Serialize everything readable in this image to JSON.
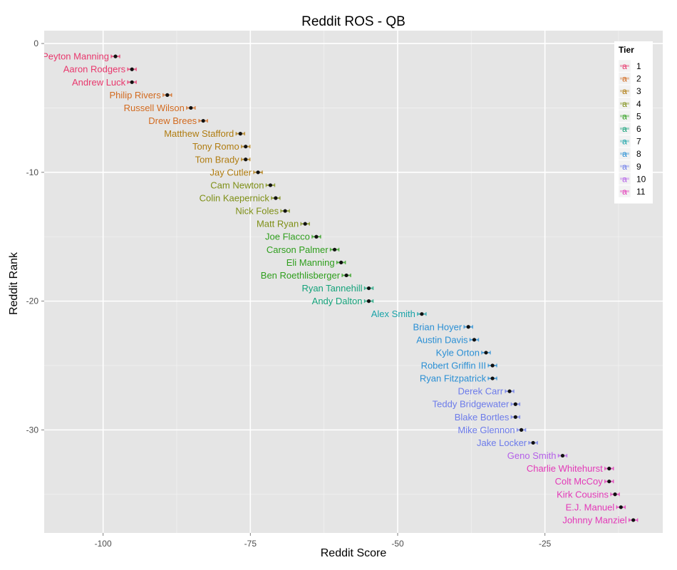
{
  "chart_data": {
    "type": "scatter",
    "title": "Reddit ROS -  QB",
    "xlabel": "Reddit Score",
    "ylabel": "Reddit Rank",
    "xlim": [
      -110,
      -5
    ],
    "ylim": [
      -38,
      1
    ],
    "x_ticks": [
      -100,
      -75,
      -50,
      -25
    ],
    "y_ticks": [
      0,
      -10,
      -20,
      -30
    ],
    "grid": true,
    "error_bars": true,
    "legend": {
      "title": "Tier",
      "position": "top-right",
      "tiers": [
        {
          "name": "1",
          "color": "#E8386D"
        },
        {
          "name": "2",
          "color": "#D26A1F"
        },
        {
          "name": "3",
          "color": "#B07C10"
        },
        {
          "name": "4",
          "color": "#7E8F16"
        },
        {
          "name": "5",
          "color": "#2E9E1C"
        },
        {
          "name": "6",
          "color": "#14A27A"
        },
        {
          "name": "7",
          "color": "#19A3A8"
        },
        {
          "name": "8",
          "color": "#2A8FD4"
        },
        {
          "name": "9",
          "color": "#6C7BEA"
        },
        {
          "name": "10",
          "color": "#B45FE8"
        },
        {
          "name": "11",
          "color": "#E339B8"
        }
      ]
    },
    "points": [
      {
        "label": "Peyton Manning",
        "x": -97.9,
        "y": -1,
        "tier": "1"
      },
      {
        "label": "Aaron Rodgers",
        "x": -95.1,
        "y": -2,
        "tier": "1"
      },
      {
        "label": "Andrew Luck",
        "x": -95.1,
        "y": -3,
        "tier": "1"
      },
      {
        "label": "Philip Rivers",
        "x": -89.1,
        "y": -4,
        "tier": "2"
      },
      {
        "label": "Russell Wilson",
        "x": -85.1,
        "y": -5,
        "tier": "2"
      },
      {
        "label": "Drew Brees",
        "x": -83.0,
        "y": -6,
        "tier": "2"
      },
      {
        "label": "Matthew Stafford",
        "x": -76.7,
        "y": -7,
        "tier": "3"
      },
      {
        "label": "Tony Romo",
        "x": -75.8,
        "y": -8,
        "tier": "3"
      },
      {
        "label": "Tom Brady",
        "x": -75.8,
        "y": -9,
        "tier": "3"
      },
      {
        "label": "Jay Cutler",
        "x": -73.7,
        "y": -10,
        "tier": "3"
      },
      {
        "label": "Cam Newton",
        "x": -71.6,
        "y": -11,
        "tier": "4"
      },
      {
        "label": "Colin Kaepernick",
        "x": -70.7,
        "y": -12,
        "tier": "4"
      },
      {
        "label": "Nick Foles",
        "x": -69.1,
        "y": -13,
        "tier": "4"
      },
      {
        "label": "Matt Ryan",
        "x": -65.7,
        "y": -14,
        "tier": "4"
      },
      {
        "label": "Joe Flacco",
        "x": -63.8,
        "y": -15,
        "tier": "5"
      },
      {
        "label": "Carson Palmer",
        "x": -60.7,
        "y": -16,
        "tier": "5"
      },
      {
        "label": "Eli Manning",
        "x": -59.6,
        "y": -17,
        "tier": "5"
      },
      {
        "label": "Ben Roethlisberger",
        "x": -58.7,
        "y": -18,
        "tier": "5"
      },
      {
        "label": "Ryan Tannehill",
        "x": -54.9,
        "y": -19,
        "tier": "6"
      },
      {
        "label": "Andy Dalton",
        "x": -54.9,
        "y": -20,
        "tier": "6"
      },
      {
        "label": "Alex Smith",
        "x": -45.9,
        "y": -21,
        "tier": "7"
      },
      {
        "label": "Brian Hoyer",
        "x": -38.0,
        "y": -22,
        "tier": "8"
      },
      {
        "label": "Austin Davis",
        "x": -37.0,
        "y": -23,
        "tier": "8"
      },
      {
        "label": "Kyle Orton",
        "x": -35.0,
        "y": -24,
        "tier": "8"
      },
      {
        "label": "Robert Griffin III",
        "x": -33.9,
        "y": -25,
        "tier": "8"
      },
      {
        "label": "Ryan Fitzpatrick",
        "x": -33.9,
        "y": -26,
        "tier": "8"
      },
      {
        "label": "Derek Carr",
        "x": -31.0,
        "y": -27,
        "tier": "9"
      },
      {
        "label": "Teddy Bridgewater",
        "x": -30.0,
        "y": -28,
        "tier": "9"
      },
      {
        "label": "Blake Bortles",
        "x": -30.0,
        "y": -29,
        "tier": "9"
      },
      {
        "label": "Mike Glennon",
        "x": -29.0,
        "y": -30,
        "tier": "9"
      },
      {
        "label": "Jake Locker",
        "x": -27.0,
        "y": -31,
        "tier": "9"
      },
      {
        "label": "Geno Smith",
        "x": -22.0,
        "y": -32,
        "tier": "10"
      },
      {
        "label": "Charlie Whitehurst",
        "x": -14.1,
        "y": -33,
        "tier": "11"
      },
      {
        "label": "Colt McCoy",
        "x": -14.1,
        "y": -34,
        "tier": "11"
      },
      {
        "label": "Kirk Cousins",
        "x": -13.1,
        "y": -35,
        "tier": "11"
      },
      {
        "label": "E.J. Manuel",
        "x": -12.1,
        "y": -36,
        "tier": "11"
      },
      {
        "label": "Johnny Manziel",
        "x": -10.0,
        "y": -37,
        "tier": "11"
      }
    ]
  }
}
